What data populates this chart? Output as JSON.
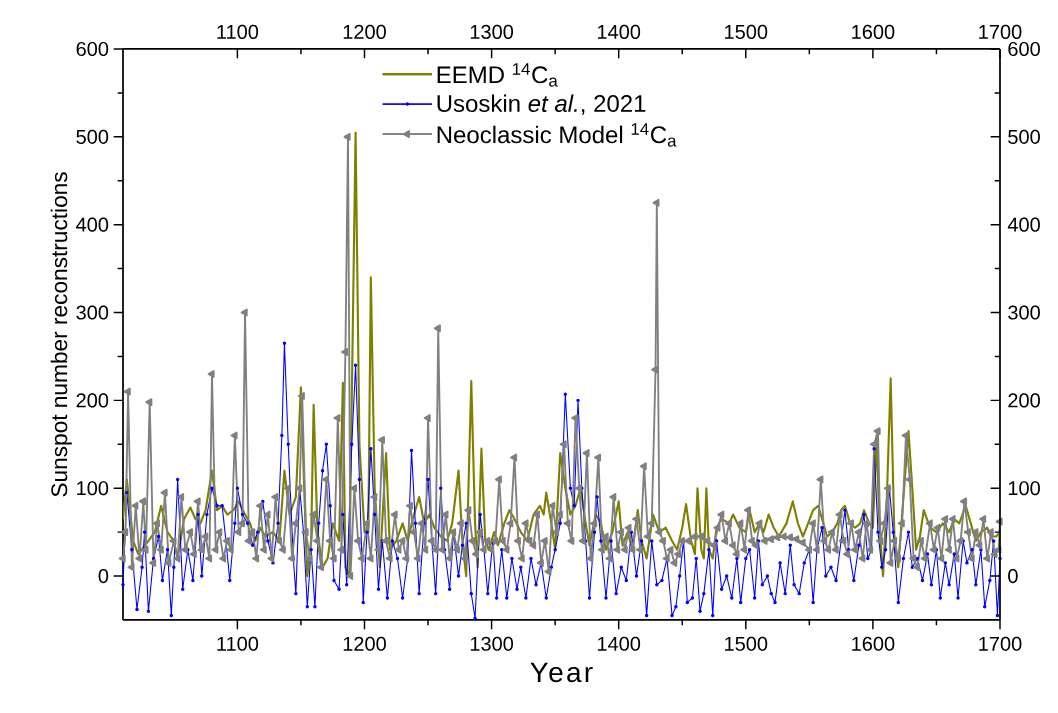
{
  "chart_data": {
    "type": "line",
    "xlabel": "Year",
    "ylabel": "Sunspot number reconstructions",
    "xlim": [
      1010,
      1700
    ],
    "xticks": [
      1100,
      1200,
      1300,
      1400,
      1500,
      1600,
      1700
    ],
    "ylim": [
      -50,
      600
    ],
    "yticks": [
      0,
      100,
      200,
      300,
      400,
      500,
      600
    ],
    "x2lim": [
      1010,
      1700
    ],
    "x2ticks": [
      1100,
      1200,
      1300,
      1400,
      1500,
      1600,
      1700
    ],
    "y2lim": [
      -50,
      600
    ],
    "y2ticks": [
      0,
      100,
      200,
      300,
      400,
      500,
      600
    ],
    "legend": "top",
    "series": [
      {
        "name": "EEMD $^{14}$C$_{a}$",
        "color": "#808000",
        "marker": "none",
        "x": [
          1010,
          1013,
          1018,
          1022,
          1030,
          1035,
          1040,
          1045,
          1050,
          1053,
          1058,
          1063,
          1067,
          1071,
          1075,
          1080,
          1084,
          1088,
          1092,
          1097,
          1101,
          1106,
          1110,
          1114,
          1118,
          1122,
          1128,
          1133,
          1137,
          1141,
          1146,
          1150,
          1153,
          1155,
          1158,
          1160,
          1163,
          1167,
          1171,
          1175,
          1180,
          1183,
          1185,
          1188,
          1193,
          1196,
          1198,
          1200,
          1203,
          1205,
          1208,
          1212,
          1217,
          1220,
          1225,
          1230,
          1234,
          1238,
          1243,
          1247,
          1251,
          1255,
          1260,
          1265,
          1269,
          1274,
          1277,
          1280,
          1284,
          1287,
          1289,
          1292,
          1295,
          1298,
          1302,
          1305,
          1310,
          1314,
          1318,
          1323,
          1328,
          1333,
          1338,
          1341,
          1343,
          1347,
          1350,
          1354,
          1358,
          1362,
          1366,
          1370,
          1374,
          1377,
          1382,
          1386,
          1390,
          1395,
          1400,
          1403,
          1407,
          1411,
          1415,
          1418,
          1422,
          1427,
          1432,
          1437,
          1442,
          1446,
          1450,
          1453,
          1457,
          1460,
          1462,
          1465,
          1467,
          1469,
          1471,
          1474,
          1477,
          1481,
          1487,
          1490,
          1495,
          1500,
          1503,
          1507,
          1511,
          1514,
          1518,
          1522,
          1526,
          1532,
          1537,
          1541,
          1545,
          1549,
          1553,
          1557,
          1560,
          1564,
          1568,
          1572,
          1575,
          1578,
          1582,
          1586,
          1590,
          1593,
          1597,
          1600,
          1603,
          1605,
          1608,
          1611,
          1614,
          1617,
          1620,
          1623,
          1628,
          1631,
          1634,
          1637,
          1640,
          1645,
          1650,
          1655,
          1660,
          1664,
          1668,
          1673,
          1677,
          1681,
          1685,
          1690,
          1693,
          1697,
          1700
        ],
        "values": [
          65,
          110,
          40,
          25,
          40,
          50,
          80,
          50,
          40,
          20,
          65,
          78,
          65,
          60,
          75,
          120,
          75,
          80,
          70,
          75,
          85,
          70,
          60,
          40,
          55,
          45,
          50,
          40,
          120,
          70,
          90,
          215,
          80,
          0,
          40,
          195,
          50,
          10,
          20,
          60,
          40,
          220,
          10,
          0,
          505,
          150,
          null,
          50,
          50,
          340,
          100,
          10,
          140,
          30,
          40,
          60,
          40,
          65,
          90,
          60,
          70,
          55,
          45,
          40,
          60,
          120,
          40,
          0,
          222,
          60,
          10,
          145,
          40,
          30,
          50,
          35,
          60,
          75,
          65,
          50,
          40,
          70,
          80,
          70,
          95,
          60,
          30,
          140,
          100,
          70,
          80,
          100,
          60,
          35,
          70,
          60,
          30,
          50,
          85,
          35,
          50,
          30,
          75,
          40,
          20,
          70,
          50,
          55,
          40,
          30,
          55,
          82,
          40,
          25,
          100,
          30,
          20,
          100,
          30,
          20,
          55,
          65,
          60,
          70,
          55,
          50,
          75,
          50,
          60,
          50,
          70,
          55,
          45,
          60,
          85,
          60,
          45,
          60,
          75,
          80,
          65,
          45,
          50,
          60,
          75,
          80,
          60,
          55,
          60,
          75,
          60,
          55,
          160,
          60,
          0,
          90,
          225,
          40,
          10,
          70,
          165,
          100,
          30,
          45,
          75,
          55,
          50,
          60,
          50,
          65,
          60,
          80,
          60,
          40,
          50,
          55,
          45,
          45,
          50
        ]
      },
      {
        "name": "Usoskin *et al.*, 2021",
        "color": "#0000ff",
        "marker": "circle",
        "x": [
          1010,
          1013,
          1017,
          1021,
          1025,
          1027,
          1030,
          1034,
          1038,
          1041,
          1045,
          1048,
          1050,
          1053,
          1057,
          1061,
          1065,
          1069,
          1072,
          1076,
          1080,
          1084,
          1088,
          1091,
          1094,
          1098,
          1100,
          1104,
          1108,
          1112,
          1116,
          1120,
          1124,
          1128,
          1132,
          1135,
          1137,
          1140,
          1144,
          1146,
          1149,
          1152,
          1155,
          1158,
          1161,
          1164,
          1167,
          1170,
          1173,
          1176,
          1180,
          1183,
          1186,
          1190,
          1193,
          1196,
          1199,
          1202,
          1205,
          1208,
          1211,
          1214,
          1218,
          1222,
          1226,
          1230,
          1234,
          1237,
          1240,
          1243,
          1247,
          1250,
          1253,
          1256,
          1260,
          1263,
          1267,
          1270,
          1274,
          1277,
          1280,
          1284,
          1287,
          1291,
          1294,
          1297,
          1301,
          1304,
          1308,
          1312,
          1316,
          1320,
          1323,
          1327,
          1331,
          1335,
          1339,
          1343,
          1347,
          1350,
          1354,
          1358,
          1362,
          1365,
          1368,
          1371,
          1374,
          1377,
          1381,
          1383,
          1386,
          1390,
          1394,
          1398,
          1402,
          1406,
          1410,
          1414,
          1418,
          1422,
          1426,
          1430,
          1434,
          1438,
          1442,
          1445,
          1448,
          1451,
          1454,
          1458,
          1461,
          1464,
          1467,
          1471,
          1474,
          1477,
          1481,
          1485,
          1489,
          1493,
          1496,
          1500,
          1503,
          1507,
          1510,
          1513,
          1517,
          1520,
          1523,
          1527,
          1531,
          1535,
          1538,
          1542,
          1546,
          1550,
          1553,
          1556,
          1560,
          1563,
          1567,
          1571,
          1575,
          1578,
          1581,
          1585,
          1589,
          1593,
          1596,
          1599,
          1601,
          1604,
          1607,
          1610,
          1613,
          1616,
          1620,
          1624,
          1628,
          1631,
          1635,
          1639,
          1643,
          1646,
          1650,
          1653,
          1657,
          1660,
          1664,
          1667,
          1671,
          1674,
          1678,
          1681,
          1685,
          1688,
          1692,
          1695,
          1698,
          1700
        ],
        "values": [
          -10,
          95,
          30,
          -38,
          10,
          50,
          -40,
          20,
          45,
          -5,
          30,
          -45,
          10,
          110,
          -15,
          30,
          -5,
          70,
          0,
          70,
          100,
          80,
          80,
          40,
          -5,
          60,
          100,
          70,
          60,
          35,
          50,
          85,
          40,
          15,
          60,
          160,
          265,
          150,
          20,
          -20,
          100,
          50,
          -35,
          30,
          -35,
          60,
          120,
          150,
          80,
          -5,
          -15,
          70,
          -10,
          150,
          240,
          110,
          -30,
          50,
          145,
          70,
          -15,
          40,
          -25,
          40,
          20,
          -25,
          20,
          143,
          60,
          -20,
          60,
          110,
          40,
          -20,
          100,
          30,
          -15,
          50,
          0,
          35,
          60,
          -20,
          -48,
          70,
          30,
          -20,
          40,
          -25,
          30,
          -25,
          20,
          -15,
          10,
          -25,
          20,
          -10,
          15,
          -25,
          10,
          30,
          60,
          207,
          100,
          80,
          200,
          100,
          40,
          -25,
          50,
          90,
          40,
          -25,
          40,
          -20,
          10,
          -5,
          50,
          0,
          40,
          -45,
          40,
          -10,
          -5,
          20,
          -45,
          -35,
          0,
          40,
          -30,
          -25,
          20,
          -40,
          -20,
          30,
          -45,
          40,
          -15,
          0,
          -25,
          20,
          -30,
          20,
          30,
          -25,
          40,
          -10,
          0,
          -20,
          -30,
          15,
          -20,
          35,
          -10,
          -20,
          15,
          30,
          -30,
          30,
          55,
          0,
          10,
          -5,
          40,
          75,
          30,
          -5,
          35,
          70,
          20,
          30,
          145,
          50,
          10,
          30,
          100,
          50,
          -30,
          20,
          50,
          10,
          20,
          -5,
          25,
          -10,
          30,
          -25,
          15,
          -10,
          25,
          -25,
          40,
          15,
          30,
          -10,
          30,
          -35,
          -5,
          40,
          -45,
          20
        ]
      },
      {
        "name": "Neoclassic Model $^{14}$C$_{a}$",
        "color": "#808080",
        "marker": "triangle",
        "x": [
          1010,
          1012,
          1014,
          1017,
          1020,
          1023,
          1026,
          1028,
          1031,
          1034,
          1037,
          1040,
          1043,
          1046,
          1050,
          1053,
          1056,
          1059,
          1063,
          1066,
          1069,
          1072,
          1075,
          1078,
          1080,
          1083,
          1086,
          1089,
          1092,
          1095,
          1098,
          1101,
          1104,
          1106,
          1109,
          1112,
          1115,
          1118,
          1121,
          1124,
          1127,
          1130,
          1133,
          1136,
          1140,
          1143,
          1146,
          1149,
          1151,
          1154,
          1157,
          1160,
          1163,
          1166,
          1170,
          1173,
          1176,
          1179,
          1182,
          1185,
          1187,
          1189,
          1192,
          1195,
          1198,
          1202,
          1205,
          1208,
          1211,
          1214,
          1217,
          1220,
          1224,
          1227,
          1230,
          1233,
          1236,
          1239,
          1242,
          1245,
          1248,
          1250,
          1253,
          1256,
          1258,
          1261,
          1264,
          1267,
          1270,
          1273,
          1276,
          1279,
          1282,
          1285,
          1288,
          1291,
          1294,
          1297,
          1300,
          1303,
          1306,
          1309,
          1312,
          1315,
          1318,
          1321,
          1324,
          1327,
          1330,
          1333,
          1336,
          1339,
          1342,
          1345,
          1348,
          1351,
          1354,
          1357,
          1360,
          1363,
          1366,
          1369,
          1372,
          1375,
          1378,
          1381,
          1384,
          1387,
          1390,
          1393,
          1396,
          1399,
          1402,
          1405,
          1408,
          1411,
          1414,
          1417,
          1420,
          1423,
          1426,
          1429,
          1430,
          1432,
          1435,
          1438,
          1441,
          1444,
          1447,
          1450,
          1455,
          1460,
          1465,
          1470,
          1475,
          1478,
          1481,
          1484,
          1487,
          1490,
          1493,
          1496,
          1499,
          1502,
          1505,
          1508,
          1511,
          1515,
          1520,
          1525,
          1530,
          1535,
          1540,
          1545,
          1550,
          1553,
          1556,
          1559,
          1562,
          1565,
          1568,
          1571,
          1574,
          1577,
          1580,
          1583,
          1586,
          1589,
          1592,
          1595,
          1598,
          1601,
          1604,
          1606,
          1609,
          1612,
          1614,
          1617,
          1620,
          1623,
          1626,
          1629,
          1632,
          1635,
          1638,
          1641,
          1645,
          1648,
          1651,
          1654,
          1657,
          1660,
          1663,
          1666,
          1669,
          1672,
          1675,
          1678,
          1681,
          1684,
          1687,
          1690,
          1693,
          1696,
          1699,
          1700
        ],
        "values": [
          20,
          50,
          210,
          10,
          80,
          20,
          85,
          30,
          198,
          15,
          60,
          30,
          95,
          15,
          40,
          20,
          90,
          30,
          50,
          25,
          85,
          30,
          45,
          20,
          230,
          30,
          50,
          20,
          40,
          30,
          160,
          50,
          60,
          300,
          40,
          50,
          20,
          80,
          30,
          70,
          20,
          90,
          40,
          30,
          100,
          20,
          60,
          100,
          205,
          50,
          20,
          70,
          40,
          10,
          110,
          40,
          20,
          180,
          30,
          255,
          500,
          0,
          100,
          40,
          20,
          60,
          20,
          90,
          30,
          155,
          40,
          20,
          70,
          30,
          40,
          20,
          80,
          50,
          20,
          60,
          30,
          180,
          40,
          30,
          282,
          30,
          70,
          20,
          50,
          30,
          60,
          20,
          75,
          40,
          25,
          50,
          30,
          40,
          30,
          40,
          110,
          40,
          30,
          60,
          135,
          40,
          20,
          60,
          40,
          35,
          70,
          15,
          40,
          5,
          80,
          50,
          70,
          150,
          60,
          40,
          180,
          100,
          40,
          140,
          20,
          60,
          135,
          30,
          45,
          20,
          90,
          30,
          50,
          30,
          55,
          30,
          65,
          30,
          125,
          45,
          60,
          235,
          425,
          50,
          40,
          20,
          30,
          15,
          25,
          40,
          40,
          45,
          45,
          40,
          35,
          55,
          70,
          40,
          60,
          35,
          25,
          60,
          30,
          75,
          40,
          35,
          60,
          40,
          42,
          44,
          45,
          44,
          42,
          38,
          30,
          60,
          30,
          110,
          40,
          30,
          50,
          30,
          70,
          40,
          25,
          60,
          30,
          50,
          20,
          60,
          30,
          150,
          165,
          40,
          60,
          100,
          15,
          40,
          20,
          60,
          160,
          110,
          20,
          10,
          40,
          20,
          60,
          30,
          55,
          20,
          65,
          30,
          65,
          20,
          40,
          85,
          50,
          20,
          50,
          35,
          65,
          20,
          50,
          25,
          30,
          62
        ]
      }
    ]
  }
}
